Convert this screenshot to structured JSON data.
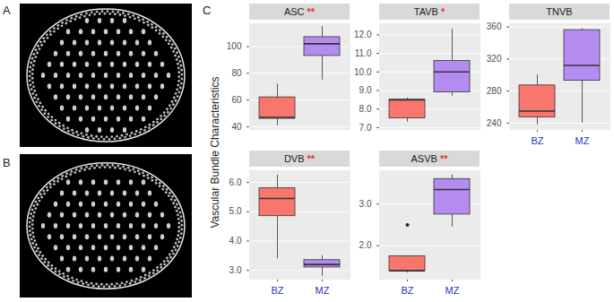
{
  "panel_labels": [
    "A",
    "B",
    "C"
  ],
  "y_label": "Vascular Bundle Characteristics",
  "chart_data": [
    {
      "type": "box",
      "title": "ASC",
      "significance": "**",
      "categories": [
        "BZ",
        "MZ"
      ],
      "colors": [
        "#F8766D",
        "#B48CF0"
      ],
      "boxes": [
        {
          "min": 41,
          "q1": 46,
          "median": 47,
          "q3": 62,
          "max": 72
        },
        {
          "min": 75,
          "q1": 93,
          "median": 102,
          "q3": 107,
          "max": 115
        }
      ],
      "ylim": [
        38,
        117
      ],
      "yticks": [
        40,
        60,
        80,
        100
      ],
      "grid": true,
      "tick_labels": "y"
    },
    {
      "type": "box",
      "title": "TAVB",
      "significance": "*",
      "categories": [
        "BZ",
        "MZ"
      ],
      "colors": [
        "#F8766D",
        "#B48CF0"
      ],
      "boxes": [
        {
          "min": 7.3,
          "q1": 7.5,
          "median": 8.5,
          "q3": 8.5,
          "max": 8.6
        },
        {
          "min": 8.7,
          "q1": 8.9,
          "median": 10.0,
          "q3": 10.6,
          "max": 12.3
        }
      ],
      "ylim": [
        6.9,
        12.6
      ],
      "yticks": [
        7,
        8,
        9,
        10,
        11,
        12
      ],
      "grid": true,
      "tick_labels": "y"
    },
    {
      "type": "box",
      "title": "TNVB",
      "categories": [
        "BZ",
        "MZ"
      ],
      "colors": [
        "#F8766D",
        "#B48CF0"
      ],
      "boxes": [
        {
          "min": 238,
          "q1": 247,
          "median": 255,
          "q3": 287,
          "max": 300
        },
        {
          "min": 240,
          "q1": 293,
          "median": 312,
          "q3": 356,
          "max": 358
        }
      ],
      "ylim": [
        232,
        364
      ],
      "yticks": [
        240,
        280,
        320,
        360
      ],
      "grid": true
    },
    {
      "type": "box",
      "title": "DVB",
      "significance": "**",
      "categories": [
        "BZ",
        "MZ"
      ],
      "colors": [
        "#F8766D",
        "#B48CF0"
      ],
      "boxes": [
        {
          "min": 3.4,
          "q1": 4.85,
          "median": 5.45,
          "q3": 5.8,
          "max": 6.25
        },
        {
          "min": 2.8,
          "q1": 3.1,
          "median": 3.2,
          "q3": 3.35,
          "max": 3.5
        }
      ],
      "ylim": [
        2.7,
        6.4
      ],
      "yticks": [
        3,
        4,
        5,
        6
      ],
      "grid": true
    },
    {
      "type": "box",
      "title": "ASVB",
      "significance": "**",
      "categories": [
        "BZ",
        "MZ"
      ],
      "colors": [
        "#F8766D",
        "#B48CF0"
      ],
      "boxes": [
        {
          "min": 1.35,
          "q1": 1.4,
          "median": 1.4,
          "q3": 1.75,
          "max": 1.75,
          "outliers": [
            2.5
          ]
        },
        {
          "min": 2.45,
          "q1": 2.75,
          "median": 3.35,
          "q3": 3.6,
          "max": 3.7
        }
      ],
      "ylim": [
        1.2,
        3.8
      ],
      "yticks": [
        2,
        3
      ],
      "grid": true
    }
  ]
}
